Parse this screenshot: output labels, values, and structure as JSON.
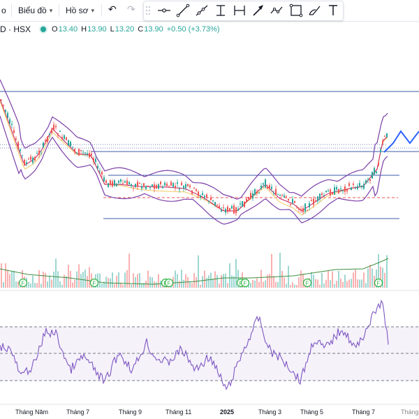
{
  "toolbar": {
    "first_label": "o",
    "chart_type_label": "Biểu đồ",
    "profile_label": "Hồ sơ"
  },
  "legend": {
    "symbol": "D · HSX",
    "open_label": "O",
    "open": "13.40",
    "high_label": "H",
    "high": "13.90",
    "low_label": "L",
    "low": "13.20",
    "close_label": "C",
    "close": "13.90",
    "change": "+0.50 (+3.73%)"
  },
  "drawing_tools": [
    "horizontal-line-icon",
    "trend-line-icon",
    "ray-icon",
    "vertical-range-icon",
    "horizontal-range-icon",
    "arrow-icon",
    "path-icon",
    "rectangle-icon",
    "brush-icon",
    "text-icon"
  ],
  "xaxis": [
    "Tháng Năm",
    "Tháng 7",
    "Tháng 9",
    "Tháng 11",
    "2025",
    "Tháng 3",
    "Tháng 5",
    "Tháng 7",
    "Tháng"
  ],
  "volume_markers": [
    "F",
    "F",
    "F",
    "F",
    "F",
    "F",
    "F",
    "F",
    "F"
  ],
  "colors": {
    "up": "#26a69a",
    "down": "#ef5350",
    "bollinger": "#7b3fa8",
    "hline": "#3d5ba9",
    "rsi": "#7e57c2",
    "projection": "#2962ff"
  },
  "chart_data": {
    "type": "line",
    "rsi_levels": [
      70,
      50,
      30
    ]
  }
}
